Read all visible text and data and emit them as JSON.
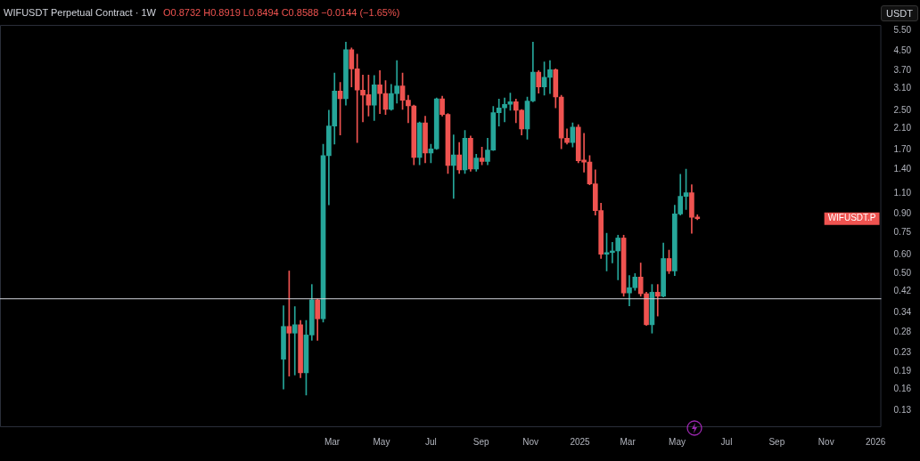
{
  "chart_data": {
    "type": "candlestick",
    "title": "WIFUSDT Perpetual Contract · 1W",
    "subtitle": "O0.8732 H0.8919 L0.8494 C0.8588 −0.0144 (−1.65%)",
    "ylabel": "USDT",
    "x": [
      "2024-01-01",
      "2024-01-08",
      "2024-01-15",
      "2024-01-22",
      "2024-01-29",
      "2024-02-05",
      "2024-02-12",
      "2024-02-19",
      "2024-02-26",
      "2024-03-04",
      "2024-03-11",
      "2024-03-18",
      "2024-03-25",
      "2024-04-01",
      "2024-04-08",
      "2024-04-15",
      "2024-04-22",
      "2024-04-29",
      "2024-05-06",
      "2024-05-13",
      "2024-05-20",
      "2024-05-27",
      "2024-06-03",
      "2024-06-10",
      "2024-06-17",
      "2024-06-24",
      "2024-07-01",
      "2024-07-08",
      "2024-07-15",
      "2024-07-22",
      "2024-07-29",
      "2024-08-05",
      "2024-08-12",
      "2024-08-19",
      "2024-08-26",
      "2024-09-02",
      "2024-09-09",
      "2024-09-16",
      "2024-09-23",
      "2024-09-30",
      "2024-10-07",
      "2024-10-14",
      "2024-10-21",
      "2024-10-28",
      "2024-11-04",
      "2024-11-11",
      "2024-11-18",
      "2024-11-25",
      "2024-12-02",
      "2024-12-09",
      "2024-12-16",
      "2024-12-23",
      "2024-12-30",
      "2025-01-06",
      "2025-01-13",
      "2025-01-20",
      "2025-01-27",
      "2025-02-03",
      "2025-02-10",
      "2025-02-17",
      "2025-02-24",
      "2025-03-03",
      "2025-03-10",
      "2025-03-17",
      "2025-03-24",
      "2025-03-31",
      "2025-04-07",
      "2025-04-14",
      "2025-04-21",
      "2025-04-28",
      "2025-05-05",
      "2025-05-12",
      "2025-05-19",
      "2025-05-26"
    ],
    "ohlc": [
      [
        0.215,
        0.364,
        0.16,
        0.297
      ],
      [
        0.297,
        0.513,
        0.182,
        0.278
      ],
      [
        0.278,
        0.361,
        0.184,
        0.302
      ],
      [
        0.302,
        0.315,
        0.179,
        0.188
      ],
      [
        0.188,
        0.315,
        0.151,
        0.273
      ],
      [
        0.273,
        0.449,
        0.259,
        0.386
      ],
      [
        0.386,
        0.389,
        0.259,
        0.32
      ],
      [
        0.32,
        1.79,
        0.31,
        1.6
      ],
      [
        1.6,
        2.5,
        0.985,
        2.14
      ],
      [
        2.14,
        3.61,
        1.79,
        3.02
      ],
      [
        3.02,
        3.29,
        1.96,
        2.8
      ],
      [
        2.8,
        4.9,
        2.63,
        4.54
      ],
      [
        4.54,
        4.62,
        3.15,
        3.76
      ],
      [
        3.76,
        4.35,
        1.82,
        3.05
      ],
      [
        3.05,
        3.54,
        2.23,
        2.9
      ],
      [
        2.92,
        3.54,
        2.36,
        2.63
      ],
      [
        2.63,
        3.52,
        2.26,
        3.21
      ],
      [
        3.21,
        3.7,
        2.42,
        2.95
      ],
      [
        2.95,
        3.35,
        2.4,
        2.52
      ],
      [
        2.52,
        3.23,
        2.5,
        2.95
      ],
      [
        2.95,
        4.08,
        2.68,
        3.18
      ],
      [
        3.18,
        3.61,
        2.52,
        2.76
      ],
      [
        2.76,
        2.9,
        2.21,
        2.61
      ],
      [
        2.61,
        2.63,
        1.46,
        1.57
      ],
      [
        1.57,
        2.23,
        1.46,
        2.21
      ],
      [
        2.21,
        2.36,
        1.49,
        1.64
      ],
      [
        1.64,
        1.79,
        1.49,
        1.71
      ],
      [
        1.71,
        2.82,
        1.7,
        2.8
      ],
      [
        2.8,
        2.87,
        2.36,
        2.4
      ],
      [
        2.4,
        2.42,
        1.34,
        1.45
      ],
      [
        1.45,
        1.96,
        1.05,
        1.61
      ],
      [
        1.61,
        1.82,
        1.34,
        1.39
      ],
      [
        1.39,
        2.05,
        1.34,
        1.9
      ],
      [
        1.9,
        1.94,
        1.37,
        1.4
      ],
      [
        1.4,
        1.62,
        1.37,
        1.56
      ],
      [
        1.56,
        1.74,
        1.46,
        1.51
      ],
      [
        1.51,
        1.9,
        1.46,
        1.69
      ],
      [
        1.69,
        2.6,
        1.68,
        2.44
      ],
      [
        2.44,
        2.79,
        2.14,
        2.56
      ],
      [
        2.56,
        2.82,
        2.23,
        2.65
      ],
      [
        2.65,
        2.96,
        2.5,
        2.72
      ],
      [
        2.72,
        2.79,
        2.21,
        2.5
      ],
      [
        2.5,
        2.52,
        1.96,
        2.08
      ],
      [
        2.08,
        2.85,
        1.88,
        2.74
      ],
      [
        2.74,
        4.9,
        2.72,
        3.64
      ],
      [
        3.64,
        3.7,
        2.96,
        3.15
      ],
      [
        3.15,
        4.03,
        2.9,
        3.46
      ],
      [
        3.46,
        4.08,
        2.95,
        3.73
      ],
      [
        3.73,
        3.76,
        2.56,
        2.85
      ],
      [
        2.85,
        2.9,
        1.71,
        1.9
      ],
      [
        1.9,
        2.08,
        1.79,
        1.82
      ],
      [
        1.82,
        2.21,
        1.74,
        2.12
      ],
      [
        2.12,
        2.17,
        1.49,
        1.52
      ],
      [
        1.53,
        1.99,
        1.36,
        1.5
      ],
      [
        1.5,
        1.6,
        1.2,
        1.21
      ],
      [
        1.21,
        1.39,
        0.89,
        0.93
      ],
      [
        0.93,
        1.0,
        0.58,
        0.605
      ],
      [
        0.605,
        0.744,
        0.513,
        0.615
      ],
      [
        0.615,
        0.68,
        0.555,
        0.625
      ],
      [
        0.625,
        0.73,
        0.47,
        0.71
      ],
      [
        0.71,
        0.73,
        0.4,
        0.413
      ],
      [
        0.413,
        0.49,
        0.364,
        0.435
      ],
      [
        0.435,
        0.5,
        0.424,
        0.483
      ],
      [
        0.483,
        0.555,
        0.4,
        0.41
      ],
      [
        0.41,
        0.416,
        0.3,
        0.302
      ],
      [
        0.302,
        0.449,
        0.278,
        0.416
      ],
      [
        0.416,
        0.449,
        0.329,
        0.4
      ],
      [
        0.4,
        0.675,
        0.397,
        0.58
      ],
      [
        0.58,
        0.63,
        0.5,
        0.513
      ],
      [
        0.513,
        0.98,
        0.49,
        0.9
      ],
      [
        0.9,
        1.33,
        0.89,
        1.07
      ],
      [
        1.07,
        1.4,
        0.94,
        1.11
      ],
      [
        1.11,
        1.2,
        0.744,
        0.87
      ],
      [
        0.8732,
        0.8919,
        0.8494,
        0.8588
      ]
    ],
    "colors": [
      "#26a69a",
      "#ef5350",
      "#26a69a",
      "#ef5350",
      "#26a69a",
      "#26a69a",
      "#ef5350",
      "#26a69a",
      "#26a69a",
      "#26a69a",
      "#ef5350",
      "#26a69a",
      "#ef5350",
      "#ef5350",
      "#ef5350",
      "#ef5350",
      "#26a69a",
      "#ef5350",
      "#ef5350",
      "#26a69a",
      "#26a69a",
      "#ef5350",
      "#ef5350",
      "#ef5350",
      "#26a69a",
      "#ef5350",
      "#26a69a",
      "#26a69a",
      "#ef5350",
      "#ef5350",
      "#26a69a",
      "#ef5350",
      "#26a69a",
      "#ef5350",
      "#26a69a",
      "#ef5350",
      "#26a69a",
      "#26a69a",
      "#26a69a",
      "#26a69a",
      "#26a69a",
      "#ef5350",
      "#ef5350",
      "#26a69a",
      "#26a69a",
      "#ef5350",
      "#26a69a",
      "#26a69a",
      "#ef5350",
      "#ef5350",
      "#ef5350",
      "#26a69a",
      "#ef5350",
      "#ef5350",
      "#ef5350",
      "#ef5350",
      "#ef5350",
      "#26a69a",
      "#26a69a",
      "#26a69a",
      "#ef5350",
      "#26a69a",
      "#26a69a",
      "#ef5350",
      "#ef5350",
      "#26a69a",
      "#ef5350",
      "#26a69a",
      "#ef5350",
      "#26a69a",
      "#26a69a",
      "#26a69a",
      "#ef5350",
      "#ef5350"
    ],
    "log": true,
    "xlim": [
      "2023-01-16",
      "2026-01-08"
    ],
    "ylim": [
      0.11,
      5.8
    ],
    "xticks": [
      {
        "value": "2024-03-01",
        "label": "Mar"
      },
      {
        "value": "2024-05-01",
        "label": "May"
      },
      {
        "value": "2024-07-01",
        "label": "Jul"
      },
      {
        "value": "2024-09-01",
        "label": "Sep"
      },
      {
        "value": "2024-11-01",
        "label": "Nov"
      },
      {
        "value": "2025-01-01",
        "label": "2025"
      },
      {
        "value": "2025-03-01",
        "label": "Mar"
      },
      {
        "value": "2025-05-01",
        "label": "May"
      },
      {
        "value": "2025-07-01",
        "label": "Jul"
      },
      {
        "value": "2025-09-01",
        "label": "Sep"
      },
      {
        "value": "2025-11-01",
        "label": "Nov"
      },
      {
        "value": "2026-01-01",
        "label": "2026"
      }
    ],
    "yticks": [
      {
        "value": 5.5,
        "label": "5.50"
      },
      {
        "value": 4.5,
        "label": "4.50"
      },
      {
        "value": 3.7,
        "label": "3.70"
      },
      {
        "value": 3.1,
        "label": "3.10"
      },
      {
        "value": 2.5,
        "label": "2.50"
      },
      {
        "value": 2.1,
        "label": "2.10"
      },
      {
        "value": 1.7,
        "label": "1.70"
      },
      {
        "value": 1.4,
        "label": "1.40"
      },
      {
        "value": 1.1,
        "label": "1.10"
      },
      {
        "value": 0.9,
        "label": "0.90"
      },
      {
        "value": 0.75,
        "label": "0.75"
      },
      {
        "value": 0.6,
        "label": "0.60"
      },
      {
        "value": 0.5,
        "label": "0.50"
      },
      {
        "value": 0.42,
        "label": "0.42"
      },
      {
        "value": 0.34,
        "label": "0.34"
      },
      {
        "value": 0.28,
        "label": "0.28"
      },
      {
        "value": 0.23,
        "label": "0.23"
      },
      {
        "value": 0.19,
        "label": "0.19"
      },
      {
        "value": 0.16,
        "label": "0.16"
      },
      {
        "value": 0.13,
        "label": "0.13"
      }
    ],
    "ref_lines": [
      {
        "axis": "y",
        "value": 0.39,
        "color": "#d1d4dc"
      }
    ],
    "annotations": [
      "WIFUSDT.P"
    ]
  }
}
